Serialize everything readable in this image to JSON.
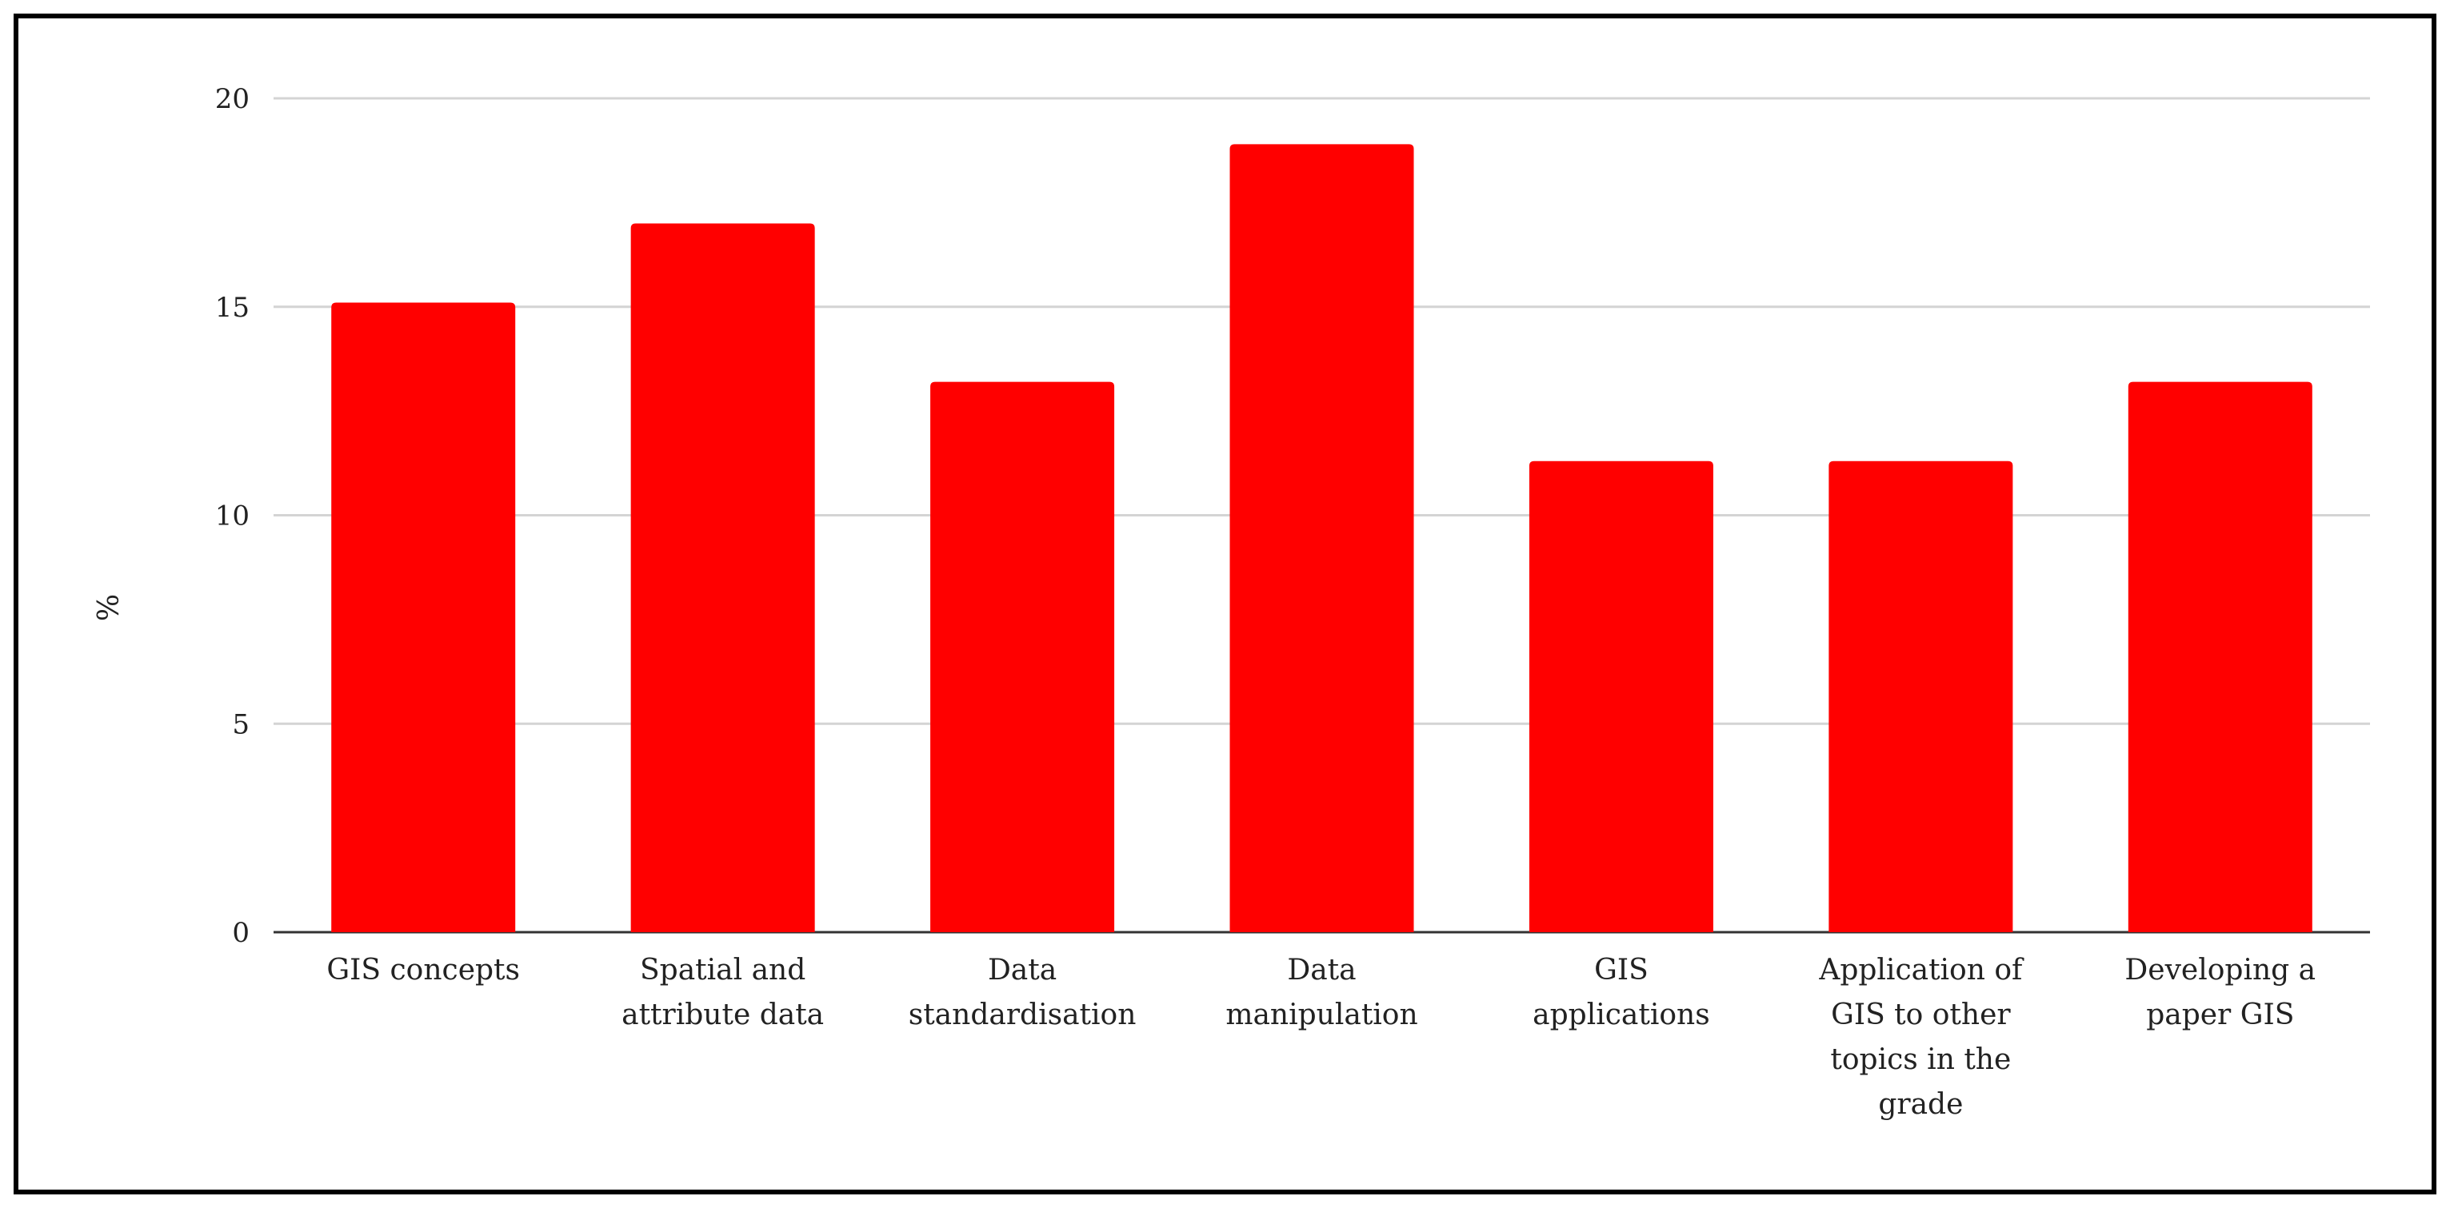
{
  "chart_data": {
    "type": "bar",
    "title": "",
    "xlabel": "",
    "ylabel": "%",
    "ylim": [
      0,
      20
    ],
    "yticks": [
      0,
      5,
      10,
      15,
      20
    ],
    "grid": true,
    "bar_color": "#ff0000",
    "categories": [
      [
        "GIS concepts"
      ],
      [
        "Spatial and",
        "attribute data"
      ],
      [
        "Data",
        "standardisation"
      ],
      [
        "Data",
        "manipulation"
      ],
      [
        "GIS",
        "applications"
      ],
      [
        "Application of",
        "GIS to other",
        "topics in the",
        "grade"
      ],
      [
        "Developing a",
        "paper GIS"
      ]
    ],
    "values": [
      15.1,
      17.0,
      13.2,
      18.9,
      11.3,
      11.3,
      13.2
    ]
  }
}
